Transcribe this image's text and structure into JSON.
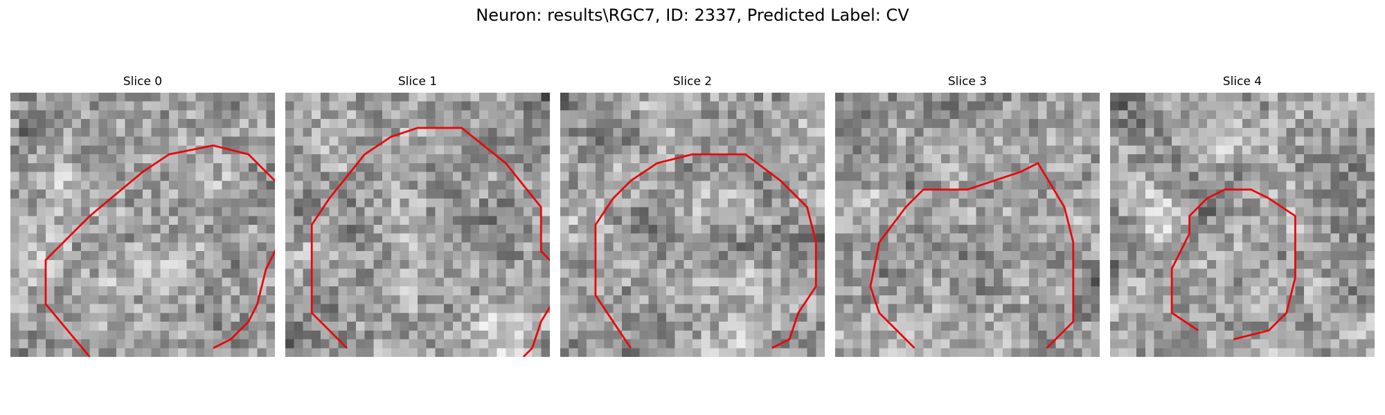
{
  "figure": {
    "title": "Neuron: results\\RGC7, ID: 2337, Predicted Label: CV"
  },
  "panels": [
    {
      "title": "Slice 0",
      "seed": 11,
      "contour": [
        [
          9,
          30
        ],
        [
          4,
          24
        ],
        [
          4,
          19
        ],
        [
          9,
          14
        ],
        [
          15,
          9
        ],
        [
          18,
          7
        ],
        [
          23,
          6
        ],
        [
          27,
          7
        ],
        [
          31,
          11
        ],
        [
          31,
          16
        ],
        [
          29,
          20
        ],
        [
          28,
          24
        ],
        [
          27,
          26
        ],
        [
          25,
          28
        ],
        [
          23,
          29
        ]
      ]
    },
    {
      "title": "Slice 1",
      "seed": 23,
      "contour": [
        [
          7,
          29
        ],
        [
          3,
          25
        ],
        [
          3,
          15
        ],
        [
          5,
          12
        ],
        [
          9,
          7
        ],
        [
          12,
          5
        ],
        [
          15,
          4
        ],
        [
          20,
          4
        ],
        [
          25,
          8
        ],
        [
          29,
          13
        ],
        [
          29,
          18
        ],
        [
          32,
          21
        ],
        [
          29,
          26
        ],
        [
          28,
          29
        ],
        [
          27,
          30
        ]
      ]
    },
    {
      "title": "Slice 2",
      "seed": 37,
      "contour": [
        [
          8,
          29
        ],
        [
          6,
          26
        ],
        [
          4,
          23
        ],
        [
          4,
          15
        ],
        [
          6,
          12
        ],
        [
          8,
          10
        ],
        [
          11,
          8
        ],
        [
          15,
          7
        ],
        [
          21,
          7
        ],
        [
          25,
          10
        ],
        [
          28,
          13
        ],
        [
          29,
          17
        ],
        [
          29,
          22
        ],
        [
          27,
          25
        ],
        [
          26,
          28
        ],
        [
          24,
          29
        ]
      ]
    },
    {
      "title": "Slice 3",
      "seed": 53,
      "contour": [
        [
          9,
          29
        ],
        [
          5,
          25
        ],
        [
          4,
          22
        ],
        [
          5,
          17
        ],
        [
          8,
          13
        ],
        [
          10,
          11
        ],
        [
          15,
          11
        ],
        [
          18,
          10
        ],
        [
          21,
          9
        ],
        [
          23,
          8
        ],
        [
          26,
          13
        ],
        [
          27,
          17
        ],
        [
          27,
          26
        ],
        [
          25,
          28
        ],
        [
          24,
          29
        ]
      ]
    },
    {
      "title": "Slice 4",
      "seed": 71,
      "contour": [
        [
          10,
          27
        ],
        [
          7,
          25
        ],
        [
          7,
          20
        ],
        [
          9,
          16
        ],
        [
          9,
          14
        ],
        [
          11,
          12
        ],
        [
          13,
          11
        ],
        [
          16,
          11
        ],
        [
          18,
          12
        ],
        [
          21,
          14
        ],
        [
          21,
          21
        ],
        [
          20,
          25
        ],
        [
          18,
          27
        ],
        [
          14,
          28
        ]
      ]
    }
  ],
  "colors": {
    "contour": "#e8080b"
  }
}
